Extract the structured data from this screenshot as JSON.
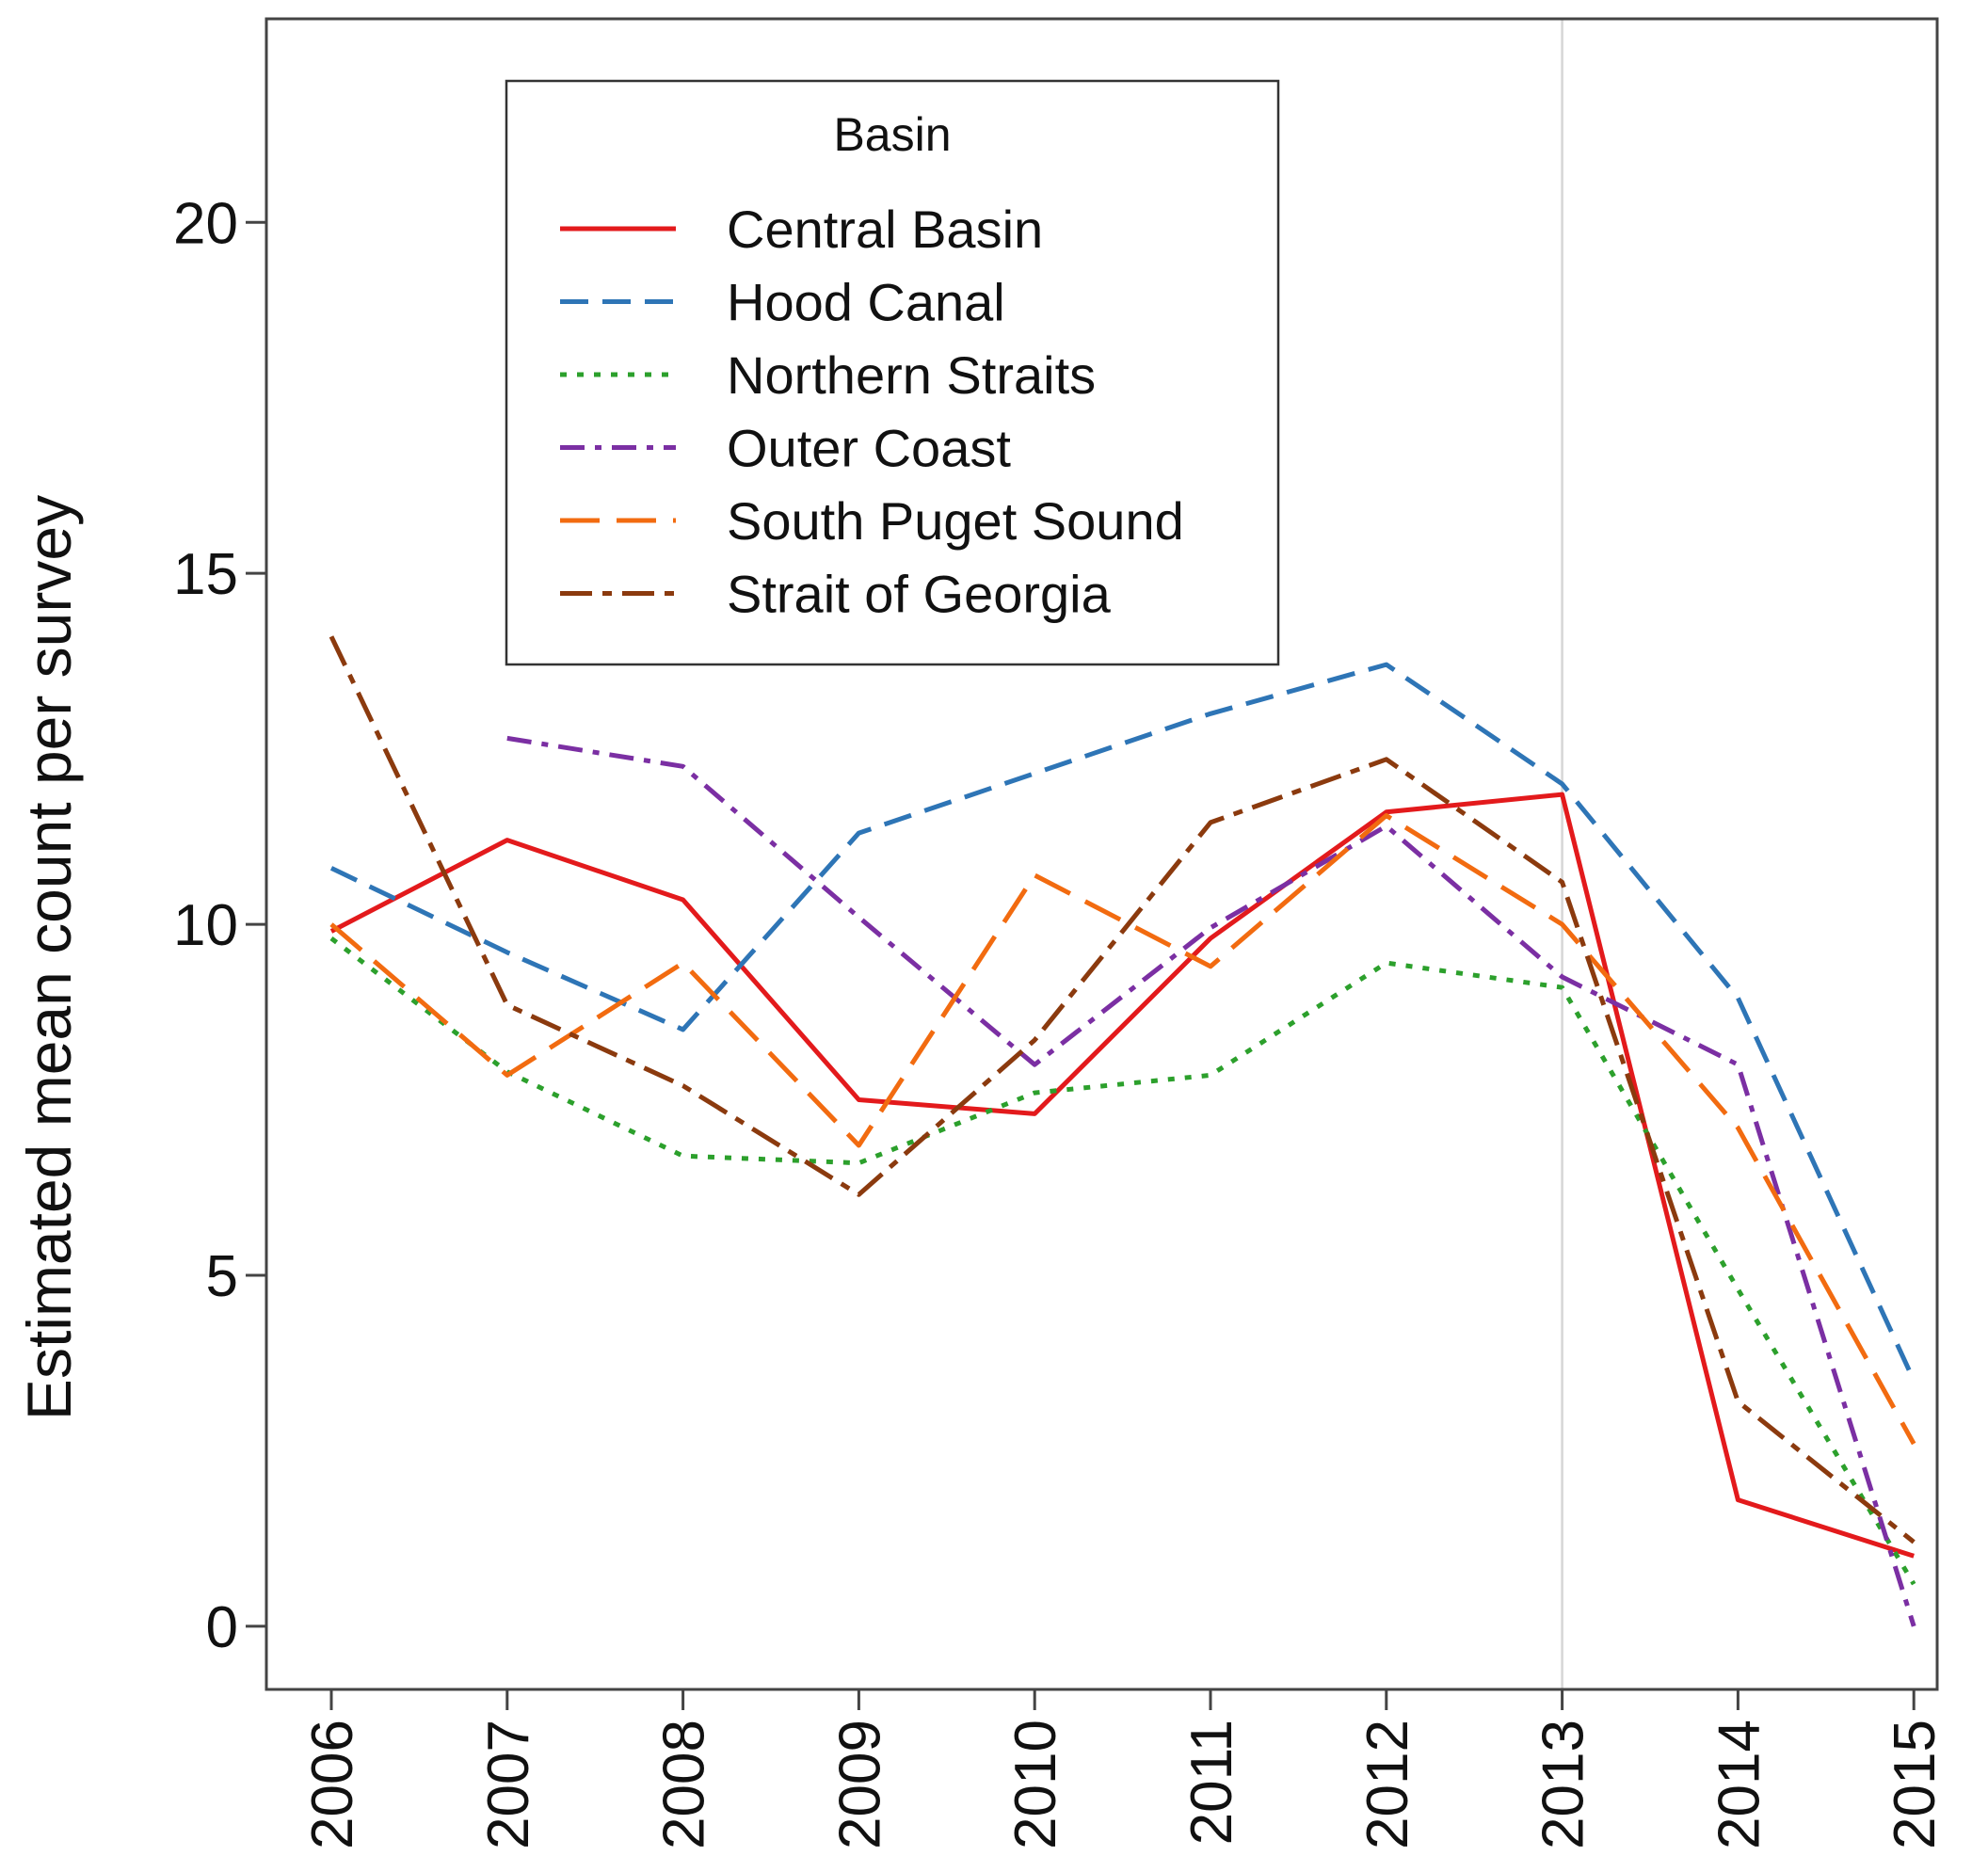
{
  "chart_data": {
    "type": "line",
    "title": "",
    "xlabel": "",
    "ylabel": "Estimated mean count per survey",
    "categories": [
      "2006",
      "2007",
      "2008",
      "2009",
      "2010",
      "2011",
      "2012",
      "2013",
      "2014",
      "2015"
    ],
    "ylim": [
      -0.9,
      22.9
    ],
    "yticks": [
      0,
      5,
      10,
      15,
      20
    ],
    "reference_line_x": "2013",
    "legend": {
      "title": "Basin",
      "position": "top-left"
    },
    "series": [
      {
        "name": "Central Basin",
        "color": "#e31a1c",
        "dash": "solid",
        "values": [
          9.9,
          11.2,
          10.35,
          7.5,
          7.3,
          9.8,
          11.6,
          11.85,
          1.8,
          1.0
        ]
      },
      {
        "name": "Hood Canal",
        "color": "#2e75b6",
        "dash": "dashed",
        "values": [
          10.8,
          9.6,
          8.5,
          11.3,
          12.15,
          13.0,
          13.7,
          12.0,
          8.95,
          3.5
        ]
      },
      {
        "name": "Northern Straits",
        "color": "#2ca02c",
        "dash": "dotted",
        "values": [
          9.8,
          7.9,
          6.7,
          6.6,
          7.6,
          7.85,
          9.45,
          9.1,
          4.8,
          0.6
        ]
      },
      {
        "name": "Outer Coast",
        "color": "#7b2fa3",
        "dash": "dotdash",
        "values": [
          null,
          12.65,
          12.25,
          10.1,
          8.0,
          9.95,
          11.4,
          9.25,
          8.0,
          0.0
        ]
      },
      {
        "name": "South Puget Sound",
        "color": "#f26b10",
        "dash": "longdash",
        "values": [
          10.0,
          7.85,
          9.45,
          6.85,
          10.7,
          9.4,
          11.55,
          10.0,
          7.1,
          2.6
        ]
      },
      {
        "name": "Strait of Georgia",
        "color": "#8b3a0e",
        "dash": "twodash",
        "values": [
          14.1,
          8.85,
          7.7,
          6.15,
          8.35,
          11.45,
          12.35,
          10.6,
          3.2,
          1.2
        ]
      }
    ]
  }
}
